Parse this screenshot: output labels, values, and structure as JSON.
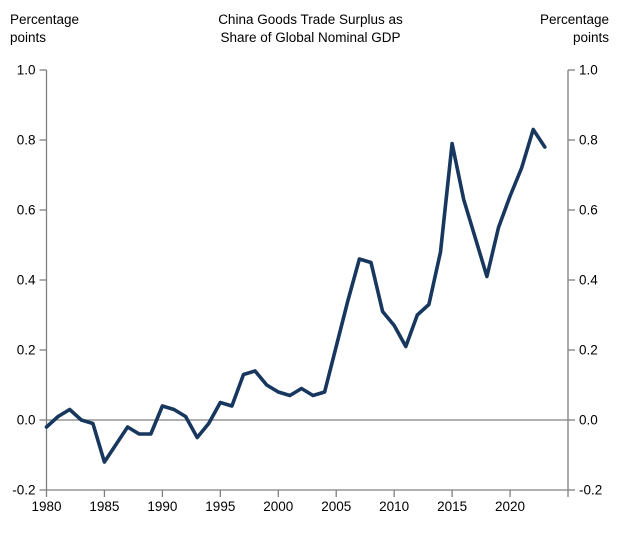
{
  "chart_data": {
    "type": "line",
    "title": "China Goods Trade Surplus as Share of Global Nominal GDP",
    "title_lines": [
      "China Goods Trade Surplus as",
      "Share of Global Nominal GDP"
    ],
    "left_axis_unit_lines": [
      "Percentage",
      "points"
    ],
    "right_axis_unit_lines": [
      "Percentage",
      "points"
    ],
    "ylabel": "Percentage points",
    "xlabel": "",
    "legend": "none",
    "grid": "zero line only",
    "xlim": [
      1980,
      2025
    ],
    "ylim": [
      -0.2,
      1.0
    ],
    "line_color": "#17375e",
    "axis_color": "#808080",
    "text_color": "#000000",
    "x_ticks": [
      1980,
      1985,
      1990,
      1995,
      2000,
      2005,
      2010,
      2015,
      2020
    ],
    "x_tick_labels": [
      "1980",
      "1985",
      "1990",
      "1995",
      "2000",
      "2005",
      "2010",
      "2015",
      "2020"
    ],
    "y_ticks": [
      1.0,
      0.8,
      0.6,
      0.4,
      0.2,
      0.0,
      -0.2
    ],
    "y_tick_labels": [
      "1.0",
      "0.8",
      "0.6",
      "0.4",
      "0.2",
      "0.0",
      "-0.2"
    ],
    "x": [
      1980,
      1981,
      1982,
      1983,
      1984,
      1985,
      1986,
      1987,
      1988,
      1989,
      1990,
      1991,
      1992,
      1993,
      1994,
      1995,
      1996,
      1997,
      1998,
      1999,
      2000,
      2001,
      2002,
      2003,
      2004,
      2005,
      2006,
      2007,
      2008,
      2009,
      2010,
      2011,
      2012,
      2013,
      2014,
      2015,
      2016,
      2017,
      2018,
      2019,
      2020,
      2021,
      2022,
      2023
    ],
    "series": [
      {
        "name": "China goods trade surplus as share of global nominal GDP",
        "values": [
          -0.02,
          0.01,
          0.03,
          0.0,
          -0.01,
          -0.12,
          -0.07,
          -0.02,
          -0.04,
          -0.04,
          0.04,
          0.03,
          0.01,
          -0.05,
          -0.01,
          0.05,
          0.04,
          0.13,
          0.14,
          0.1,
          0.08,
          0.07,
          0.09,
          0.07,
          0.08,
          0.21,
          0.34,
          0.46,
          0.45,
          0.31,
          0.27,
          0.21,
          0.3,
          0.33,
          0.48,
          0.79,
          0.63,
          0.52,
          0.41,
          0.55,
          0.64,
          0.72,
          0.83,
          0.78
        ]
      }
    ]
  }
}
